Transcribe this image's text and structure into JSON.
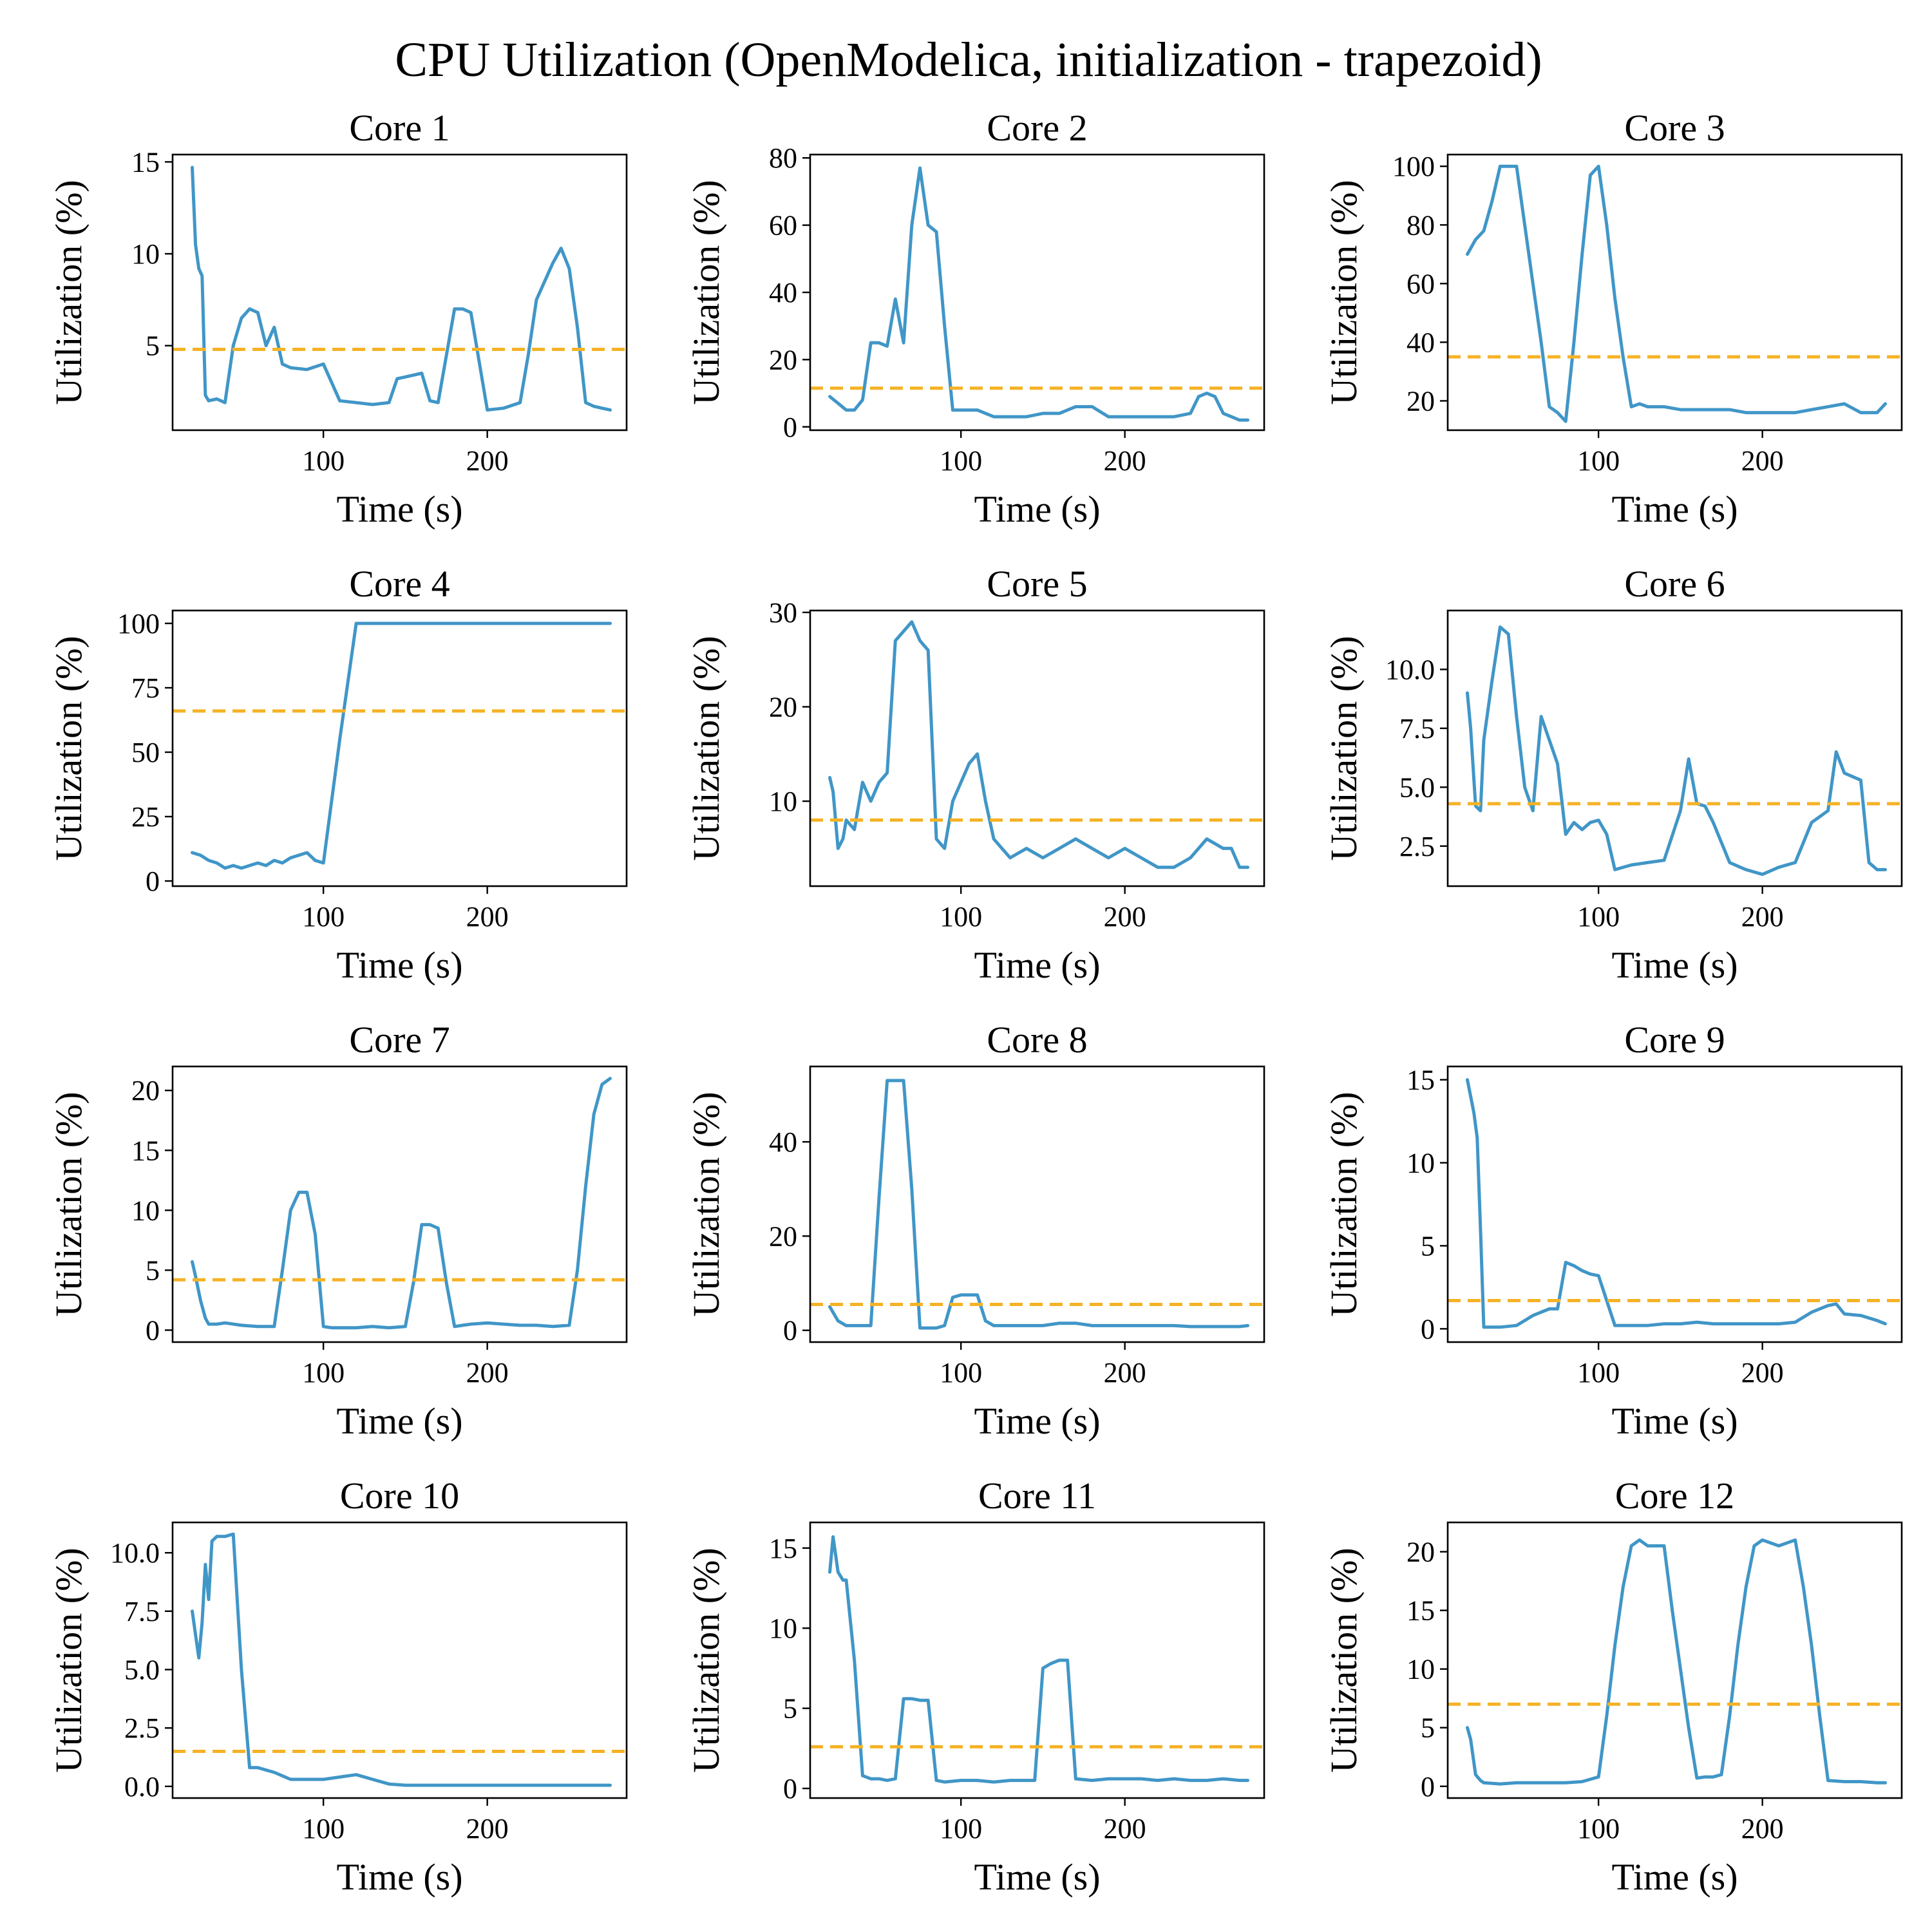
{
  "figure": {
    "title": "CPU Utilization (OpenModelica, initialization - trapezoid)",
    "series_color": "#4196c8",
    "mean_color": "#f5b225"
  },
  "chart_data": [
    {
      "type": "line",
      "title": "Core 1",
      "xlabel": "Time (s)",
      "ylabel": "Utilization (%)",
      "xlim": [
        8,
        285
      ],
      "ylim": [
        0.4,
        15.4
      ],
      "xticks": [
        100,
        200
      ],
      "xtick_labels": [
        "100",
        "200"
      ],
      "yticks": [
        5,
        10,
        15
      ],
      "ytick_labels": [
        "5",
        "10",
        "15"
      ],
      "mean": 4.8,
      "grid": false,
      "x": [
        20,
        22,
        24,
        26,
        28,
        30,
        35,
        40,
        45,
        50,
        55,
        60,
        65,
        70,
        75,
        80,
        90,
        100,
        110,
        120,
        130,
        140,
        145,
        150,
        160,
        165,
        170,
        180,
        185,
        190,
        200,
        210,
        220,
        225,
        230,
        240,
        245,
        250,
        255,
        260,
        265,
        270,
        275
      ],
      "y": [
        14.7,
        10.5,
        9.2,
        8.8,
        2.3,
        2.0,
        2.1,
        1.9,
        5.0,
        6.5,
        7.0,
        6.8,
        5.0,
        6.0,
        4.0,
        3.8,
        3.7,
        4.0,
        2.0,
        1.9,
        1.8,
        1.9,
        3.2,
        3.3,
        3.5,
        2.0,
        1.9,
        7.0,
        7.0,
        6.8,
        1.5,
        1.6,
        1.9,
        4.5,
        7.5,
        9.5,
        10.3,
        9.2,
        6.0,
        1.9,
        1.7,
        1.6,
        1.5
      ]
    },
    {
      "type": "line",
      "title": "Core 2",
      "xlabel": "Time (s)",
      "ylabel": "Utilization (%)",
      "xlim": [
        8,
        285
      ],
      "ylim": [
        -1,
        81
      ],
      "xticks": [
        100,
        200
      ],
      "xtick_labels": [
        "100",
        "200"
      ],
      "yticks": [
        0,
        20,
        40,
        60,
        80
      ],
      "ytick_labels": [
        "0",
        "20",
        "40",
        "60",
        "80"
      ],
      "mean": 11.5,
      "grid": false,
      "x": [
        20,
        25,
        30,
        35,
        40,
        45,
        50,
        55,
        60,
        65,
        70,
        75,
        80,
        85,
        90,
        95,
        100,
        110,
        120,
        130,
        140,
        150,
        160,
        170,
        180,
        190,
        200,
        210,
        220,
        230,
        240,
        245,
        250,
        255,
        260,
        265,
        270,
        275
      ],
      "y": [
        9,
        7,
        5,
        5,
        8,
        25,
        25,
        24,
        38,
        25,
        60,
        77,
        60,
        58,
        30,
        5,
        5,
        5,
        3,
        3,
        3,
        4,
        4,
        6,
        6,
        3,
        3,
        3,
        3,
        3,
        4,
        9,
        10,
        9,
        4,
        3,
        2,
        2
      ]
    },
    {
      "type": "line",
      "title": "Core 3",
      "xlabel": "Time (s)",
      "ylabel": "Utilization (%)",
      "xlim": [
        8,
        285
      ],
      "ylim": [
        10,
        104
      ],
      "xticks": [
        100,
        200
      ],
      "xtick_labels": [
        "100",
        "200"
      ],
      "yticks": [
        20,
        40,
        60,
        80,
        100
      ],
      "ytick_labels": [
        "20",
        "40",
        "60",
        "80",
        "100"
      ],
      "mean": 35,
      "grid": false,
      "x": [
        20,
        25,
        30,
        35,
        40,
        45,
        50,
        55,
        60,
        65,
        70,
        75,
        80,
        85,
        90,
        95,
        100,
        105,
        110,
        115,
        120,
        125,
        130,
        140,
        150,
        160,
        170,
        180,
        190,
        200,
        210,
        220,
        230,
        240,
        250,
        260,
        270,
        275
      ],
      "y": [
        70,
        75,
        78,
        88,
        100,
        100,
        100,
        80,
        60,
        40,
        18,
        16,
        13,
        40,
        70,
        97,
        100,
        80,
        55,
        35,
        18,
        19,
        18,
        18,
        17,
        17,
        17,
        17,
        16,
        16,
        16,
        16,
        17,
        18,
        19,
        16,
        16,
        19
      ]
    },
    {
      "type": "line",
      "title": "Core 4",
      "xlabel": "Time (s)",
      "ylabel": "Utilization (%)",
      "xlim": [
        8,
        285
      ],
      "ylim": [
        -2,
        105
      ],
      "xticks": [
        100,
        200
      ],
      "xtick_labels": [
        "100",
        "200"
      ],
      "yticks": [
        0,
        25,
        50,
        75,
        100
      ],
      "ytick_labels": [
        "0",
        "25",
        "50",
        "75",
        "100"
      ],
      "mean": 66,
      "grid": false,
      "x": [
        20,
        25,
        30,
        35,
        40,
        45,
        50,
        55,
        60,
        65,
        70,
        75,
        80,
        85,
        90,
        95,
        100,
        110,
        120,
        150,
        200,
        250,
        275
      ],
      "y": [
        11,
        10,
        8,
        7,
        5,
        6,
        5,
        6,
        7,
        6,
        8,
        7,
        9,
        10,
        11,
        8,
        7,
        55,
        100,
        100,
        100,
        100,
        100
      ]
    },
    {
      "type": "line",
      "title": "Core 5",
      "xlabel": "Time (s)",
      "ylabel": "Utilization (%)",
      "xlim": [
        8,
        285
      ],
      "ylim": [
        1,
        30.2
      ],
      "xticks": [
        100,
        200
      ],
      "xtick_labels": [
        "100",
        "200"
      ],
      "yticks": [
        10,
        20,
        30
      ],
      "ytick_labels": [
        "10",
        "20",
        "30"
      ],
      "mean": 8,
      "grid": false,
      "x": [
        20,
        22,
        25,
        28,
        30,
        35,
        40,
        45,
        50,
        55,
        60,
        65,
        70,
        75,
        80,
        85,
        90,
        95,
        100,
        105,
        110,
        115,
        120,
        125,
        130,
        140,
        150,
        160,
        170,
        180,
        190,
        200,
        210,
        220,
        230,
        240,
        250,
        260,
        265,
        270,
        275
      ],
      "y": [
        12.5,
        11,
        5,
        6,
        8,
        7,
        12,
        10,
        12,
        13,
        27,
        28,
        29,
        27,
        26,
        6,
        5,
        10,
        12,
        14,
        15,
        10,
        6,
        5,
        4,
        5,
        4,
        5,
        6,
        5,
        4,
        5,
        4,
        3,
        3,
        4,
        6,
        5,
        5,
        3,
        3
      ]
    },
    {
      "type": "line",
      "title": "Core 6",
      "xlabel": "Time (s)",
      "ylabel": "Utilization (%)",
      "xlim": [
        8,
        285
      ],
      "ylim": [
        0.8,
        12.5
      ],
      "xticks": [
        100,
        200
      ],
      "xtick_labels": [
        "100",
        "200"
      ],
      "yticks": [
        2.5,
        5.0,
        7.5,
        10.0
      ],
      "ytick_labels": [
        "2.5",
        "5.0",
        "7.5",
        "10.0"
      ],
      "mean": 4.3,
      "grid": false,
      "x": [
        20,
        22,
        25,
        28,
        30,
        35,
        40,
        45,
        50,
        55,
        60,
        65,
        70,
        75,
        80,
        85,
        90,
        95,
        100,
        105,
        110,
        120,
        130,
        140,
        150,
        155,
        160,
        165,
        170,
        180,
        190,
        200,
        210,
        220,
        230,
        240,
        245,
        250,
        260,
        265,
        270,
        275
      ],
      "y": [
        9.0,
        7.5,
        4.2,
        4.0,
        7.0,
        9.5,
        11.8,
        11.5,
        8.0,
        5.0,
        4.0,
        8.0,
        7.0,
        6.0,
        3.0,
        3.5,
        3.2,
        3.5,
        3.6,
        3.0,
        1.5,
        1.7,
        1.8,
        1.9,
        4.0,
        6.2,
        4.3,
        4.2,
        3.5,
        1.8,
        1.5,
        1.3,
        1.6,
        1.8,
        3.5,
        4.0,
        6.5,
        5.6,
        5.3,
        1.8,
        1.5,
        1.5
      ]
    },
    {
      "type": "line",
      "title": "Core 7",
      "xlabel": "Time (s)",
      "ylabel": "Utilization (%)",
      "xlim": [
        8,
        285
      ],
      "ylim": [
        -1,
        22
      ],
      "xticks": [
        100,
        200
      ],
      "xtick_labels": [
        "100",
        "200"
      ],
      "yticks": [
        0,
        5,
        10,
        15,
        20
      ],
      "ytick_labels": [
        "0",
        "5",
        "10",
        "15",
        "20"
      ],
      "mean": 4.2,
      "grid": false,
      "x": [
        20,
        22,
        25,
        28,
        30,
        35,
        40,
        50,
        60,
        70,
        75,
        80,
        85,
        90,
        95,
        100,
        105,
        110,
        120,
        130,
        140,
        150,
        155,
        160,
        165,
        170,
        175,
        180,
        185,
        190,
        200,
        210,
        220,
        230,
        240,
        250,
        255,
        260,
        265,
        270,
        275
      ],
      "y": [
        5.7,
        4.5,
        2.5,
        1.0,
        0.5,
        0.5,
        0.6,
        0.4,
        0.3,
        0.3,
        5.0,
        10.0,
        11.5,
        11.5,
        8.0,
        0.3,
        0.2,
        0.2,
        0.2,
        0.3,
        0.2,
        0.3,
        4.0,
        8.8,
        8.8,
        8.5,
        4.0,
        0.3,
        0.4,
        0.5,
        0.6,
        0.5,
        0.4,
        0.4,
        0.3,
        0.4,
        5.0,
        12.0,
        18.0,
        20.5,
        21.0
      ]
    },
    {
      "type": "line",
      "title": "Core 8",
      "xlabel": "Time (s)",
      "ylabel": "Utilization (%)",
      "xlim": [
        8,
        285
      ],
      "ylim": [
        -2.5,
        56
      ],
      "xticks": [
        100,
        200
      ],
      "xtick_labels": [
        "100",
        "200"
      ],
      "yticks": [
        0,
        20,
        40
      ],
      "ytick_labels": [
        "0",
        "20",
        "40"
      ],
      "mean": 5.5,
      "grid": false,
      "x": [
        20,
        25,
        30,
        35,
        40,
        45,
        50,
        55,
        60,
        65,
        70,
        75,
        80,
        85,
        90,
        95,
        100,
        105,
        110,
        115,
        120,
        130,
        140,
        150,
        160,
        170,
        180,
        190,
        200,
        210,
        220,
        230,
        240,
        250,
        260,
        270,
        275
      ],
      "y": [
        5,
        2,
        1,
        1,
        1,
        1,
        28,
        53,
        53,
        53,
        30,
        0.5,
        0.5,
        0.5,
        1,
        7,
        7.5,
        7.5,
        7.5,
        2,
        1,
        1,
        1,
        1,
        1.5,
        1.5,
        1,
        1,
        1,
        1,
        1,
        1,
        0.8,
        0.8,
        0.8,
        0.8,
        1
      ]
    },
    {
      "type": "line",
      "title": "Core 9",
      "xlabel": "Time (s)",
      "ylabel": "Utilization (%)",
      "xlim": [
        8,
        285
      ],
      "ylim": [
        -0.8,
        15.8
      ],
      "xticks": [
        100,
        200
      ],
      "xtick_labels": [
        "100",
        "200"
      ],
      "yticks": [
        0,
        5,
        10,
        15
      ],
      "ytick_labels": [
        "0",
        "5",
        "10",
        "15"
      ],
      "mean": 1.7,
      "grid": false,
      "x": [
        20,
        22,
        24,
        26,
        28,
        30,
        35,
        40,
        50,
        60,
        70,
        75,
        80,
        85,
        90,
        95,
        100,
        110,
        120,
        130,
        140,
        150,
        160,
        170,
        180,
        190,
        200,
        210,
        220,
        230,
        240,
        245,
        250,
        260,
        270,
        275
      ],
      "y": [
        15.0,
        14.0,
        13.0,
        11.5,
        6.0,
        0.1,
        0.1,
        0.1,
        0.2,
        0.8,
        1.2,
        1.2,
        4.0,
        3.8,
        3.5,
        3.3,
        3.2,
        0.2,
        0.2,
        0.2,
        0.3,
        0.3,
        0.4,
        0.3,
        0.3,
        0.3,
        0.3,
        0.3,
        0.4,
        1.0,
        1.4,
        1.5,
        0.9,
        0.8,
        0.5,
        0.3
      ]
    },
    {
      "type": "line",
      "title": "Core 10",
      "xlabel": "Time (s)",
      "ylabel": "Utilization (%)",
      "xlim": [
        8,
        285
      ],
      "ylim": [
        -0.5,
        11.3
      ],
      "xticks": [
        100,
        200
      ],
      "xtick_labels": [
        "100",
        "200"
      ],
      "yticks": [
        0.0,
        2.5,
        5.0,
        7.5,
        10.0
      ],
      "ytick_labels": [
        "0.0",
        "2.5",
        "5.0",
        "7.5",
        "10.0"
      ],
      "mean": 1.5,
      "grid": false,
      "x": [
        20,
        22,
        24,
        26,
        28,
        30,
        32,
        35,
        40,
        45,
        50,
        55,
        60,
        70,
        80,
        90,
        100,
        110,
        120,
        130,
        140,
        150,
        160,
        200,
        250,
        275
      ],
      "y": [
        7.5,
        6.5,
        5.5,
        7.0,
        9.5,
        8.0,
        10.5,
        10.7,
        10.7,
        10.8,
        5.0,
        0.8,
        0.8,
        0.6,
        0.3,
        0.3,
        0.3,
        0.4,
        0.5,
        0.3,
        0.1,
        0.05,
        0.05,
        0.05,
        0.05,
        0.05
      ]
    },
    {
      "type": "line",
      "title": "Core 11",
      "xlabel": "Time (s)",
      "ylabel": "Utilization (%)",
      "xlim": [
        8,
        285
      ],
      "ylim": [
        -0.6,
        16.6
      ],
      "xticks": [
        100,
        200
      ],
      "xtick_labels": [
        "100",
        "200"
      ],
      "yticks": [
        0,
        5,
        10,
        15
      ],
      "ytick_labels": [
        "0",
        "5",
        "10",
        "15"
      ],
      "mean": 2.6,
      "grid": false,
      "x": [
        20,
        22,
        25,
        28,
        30,
        35,
        40,
        45,
        50,
        55,
        60,
        65,
        70,
        75,
        80,
        85,
        90,
        100,
        110,
        120,
        130,
        140,
        145,
        150,
        155,
        160,
        165,
        170,
        180,
        190,
        200,
        210,
        220,
        230,
        240,
        250,
        260,
        270,
        275
      ],
      "y": [
        13.5,
        15.7,
        13.5,
        13.0,
        13.0,
        8.0,
        0.8,
        0.6,
        0.6,
        0.5,
        0.6,
        5.6,
        5.6,
        5.5,
        5.5,
        0.5,
        0.4,
        0.5,
        0.5,
        0.4,
        0.5,
        0.5,
        0.5,
        7.5,
        7.8,
        8.0,
        8.0,
        0.6,
        0.5,
        0.6,
        0.6,
        0.6,
        0.5,
        0.6,
        0.5,
        0.5,
        0.6,
        0.5,
        0.5
      ]
    },
    {
      "type": "line",
      "title": "Core 12",
      "xlabel": "Time (s)",
      "ylabel": "Utilization (%)",
      "xlim": [
        8,
        285
      ],
      "ylim": [
        -1,
        22.5
      ],
      "xticks": [
        100,
        200
      ],
      "xtick_labels": [
        "100",
        "200"
      ],
      "yticks": [
        0,
        5,
        10,
        15,
        20
      ],
      "ytick_labels": [
        "0",
        "5",
        "10",
        "15",
        "20"
      ],
      "mean": 7.0,
      "grid": false,
      "x": [
        20,
        22,
        25,
        28,
        30,
        40,
        50,
        60,
        70,
        80,
        90,
        95,
        100,
        105,
        110,
        115,
        120,
        125,
        130,
        140,
        145,
        150,
        155,
        160,
        165,
        170,
        175,
        180,
        185,
        190,
        195,
        200,
        210,
        220,
        225,
        230,
        235,
        240,
        250,
        260,
        270,
        275
      ],
      "y": [
        5.0,
        4.0,
        1.0,
        0.5,
        0.3,
        0.2,
        0.3,
        0.3,
        0.3,
        0.3,
        0.4,
        0.6,
        0.8,
        6.0,
        12.0,
        17.0,
        20.5,
        21.0,
        20.5,
        20.5,
        15.0,
        10.0,
        5.0,
        0.7,
        0.8,
        0.8,
        1.0,
        6.0,
        12.0,
        17.0,
        20.5,
        21.0,
        20.5,
        21.0,
        17.0,
        12.0,
        6.0,
        0.5,
        0.4,
        0.4,
        0.3,
        0.3
      ]
    }
  ]
}
